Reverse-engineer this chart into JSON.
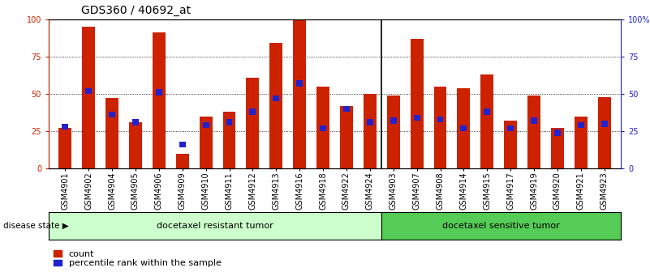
{
  "title": "GDS360 / 40692_at",
  "samples": [
    "GSM4901",
    "GSM4902",
    "GSM4904",
    "GSM4905",
    "GSM4906",
    "GSM4909",
    "GSM4910",
    "GSM4911",
    "GSM4912",
    "GSM4913",
    "GSM4916",
    "GSM4918",
    "GSM4922",
    "GSM4924",
    "GSM4903",
    "GSM4907",
    "GSM4908",
    "GSM4914",
    "GSM4915",
    "GSM4917",
    "GSM4919",
    "GSM4920",
    "GSM4921",
    "GSM4923"
  ],
  "counts": [
    27,
    95,
    47,
    31,
    91,
    10,
    35,
    38,
    61,
    84,
    100,
    55,
    42,
    50,
    49,
    87,
    55,
    54,
    63,
    32,
    49,
    27,
    35,
    48
  ],
  "percentiles": [
    28,
    52,
    36,
    31,
    51,
    16,
    29,
    31,
    38,
    47,
    57,
    27,
    40,
    31,
    32,
    34,
    33,
    27,
    38,
    27,
    32,
    24,
    29,
    30
  ],
  "group1_count": 14,
  "group2_count": 10,
  "group1_label": "docetaxel resistant tumor",
  "group2_label": "docetaxel sensitive tumor",
  "disease_state_label": "disease state",
  "bar_color": "#cc2200",
  "percentile_color": "#2222cc",
  "group1_bg": "#ccffcc",
  "group2_bg": "#55cc55",
  "ylim": [
    0,
    100
  ],
  "yticks_left": [
    0,
    25,
    50,
    75,
    100
  ],
  "yticks_right": [
    "0",
    "25",
    "50",
    "75",
    "100%"
  ],
  "grid_lines": [
    25,
    50,
    75
  ],
  "bar_width": 0.55,
  "title_fontsize": 10,
  "tick_fontsize": 7,
  "legend_fontsize": 8,
  "label_fontsize": 8
}
